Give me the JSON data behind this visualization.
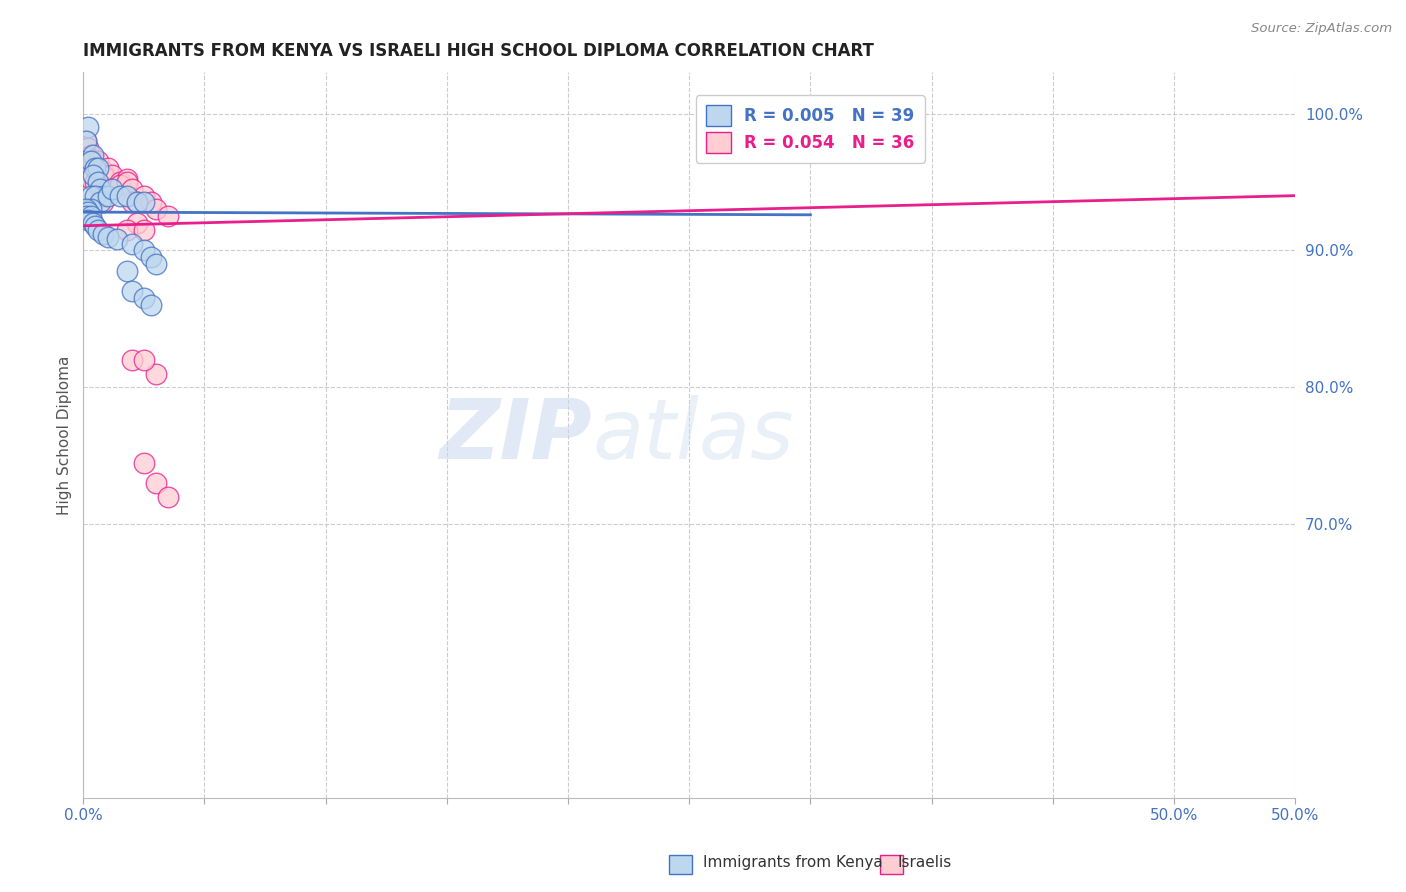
{
  "title": "IMMIGRANTS FROM KENYA VS ISRAELI HIGH SCHOOL DIPLOMA CORRELATION CHART",
  "source": "Source: ZipAtlas.com",
  "ylabel": "High School Diploma",
  "xlim": [
    0.0,
    0.5
  ],
  "ylim": [
    0.5,
    1.03
  ],
  "xtick_positions": [
    0.0,
    0.05,
    0.1,
    0.15,
    0.2,
    0.25,
    0.3,
    0.35,
    0.4,
    0.45,
    0.5
  ],
  "xtick_labels_show": {
    "0.0": "0.0%",
    "0.5": "50.0%"
  },
  "ytick_labels_right": [
    "100.0%",
    "90.0%",
    "80.0%",
    "70.0%"
  ],
  "ytick_positions_right": [
    1.0,
    0.9,
    0.8,
    0.7
  ],
  "legend_R1": "R = 0.005",
  "legend_N1": "N = 39",
  "legend_R2": "R = 0.054",
  "legend_N2": "N = 36",
  "watermark_zip": "ZIP",
  "watermark_atlas": "atlas",
  "background_color": "#ffffff",
  "grid_color": "#cccccc",
  "title_color": "#222222",
  "axis_label_color": "#555555",
  "right_tick_color": "#4472C4",
  "blue_scatter_color": "#BDD7EE",
  "pink_scatter_color": "#FFCDD2",
  "blue_edge_color": "#4472C4",
  "pink_edge_color": "#E91E8C",
  "blue_line_color": "#4472C4",
  "pink_line_color": "#E91E8C",
  "blue_scatter_x": [
    0.002,
    0.001,
    0.004,
    0.003,
    0.005,
    0.006,
    0.004,
    0.006,
    0.007,
    0.008,
    0.003,
    0.005,
    0.007,
    0.01,
    0.012,
    0.015,
    0.018,
    0.022,
    0.025,
    0.003,
    0.001,
    0.002,
    0.001,
    0.003,
    0.002,
    0.004,
    0.005,
    0.006,
    0.008,
    0.01,
    0.014,
    0.02,
    0.025,
    0.028,
    0.03,
    0.018,
    0.02,
    0.025,
    0.028
  ],
  "blue_scatter_y": [
    0.99,
    0.98,
    0.97,
    0.965,
    0.96,
    0.96,
    0.955,
    0.95,
    0.945,
    0.94,
    0.94,
    0.94,
    0.935,
    0.94,
    0.945,
    0.94,
    0.94,
    0.935,
    0.935,
    0.93,
    0.93,
    0.928,
    0.925,
    0.925,
    0.922,
    0.92,
    0.918,
    0.915,
    0.912,
    0.91,
    0.908,
    0.905,
    0.9,
    0.895,
    0.89,
    0.885,
    0.87,
    0.865,
    0.86
  ],
  "pink_scatter_x": [
    0.001,
    0.002,
    0.003,
    0.002,
    0.004,
    0.006,
    0.005,
    0.008,
    0.01,
    0.008,
    0.012,
    0.003,
    0.005,
    0.015,
    0.018,
    0.01,
    0.012,
    0.015,
    0.018,
    0.02,
    0.025,
    0.008,
    0.02,
    0.022,
    0.028,
    0.03,
    0.035,
    0.022,
    0.018,
    0.025,
    0.03,
    0.025,
    0.03,
    0.035,
    0.02,
    0.025
  ],
  "pink_scatter_y": [
    0.98,
    0.975,
    0.97,
    0.968,
    0.965,
    0.965,
    0.96,
    0.958,
    0.96,
    0.955,
    0.955,
    0.952,
    0.95,
    0.95,
    0.952,
    0.945,
    0.945,
    0.948,
    0.95,
    0.945,
    0.94,
    0.935,
    0.935,
    0.935,
    0.935,
    0.93,
    0.925,
    0.92,
    0.915,
    0.915,
    0.81,
    0.745,
    0.73,
    0.72,
    0.82,
    0.82
  ],
  "blue_trend_x": [
    0.0,
    0.3
  ],
  "blue_trend_y": [
    0.928,
    0.926
  ],
  "pink_trend_x": [
    0.0,
    0.5
  ],
  "pink_trend_y": [
    0.918,
    0.94
  ]
}
